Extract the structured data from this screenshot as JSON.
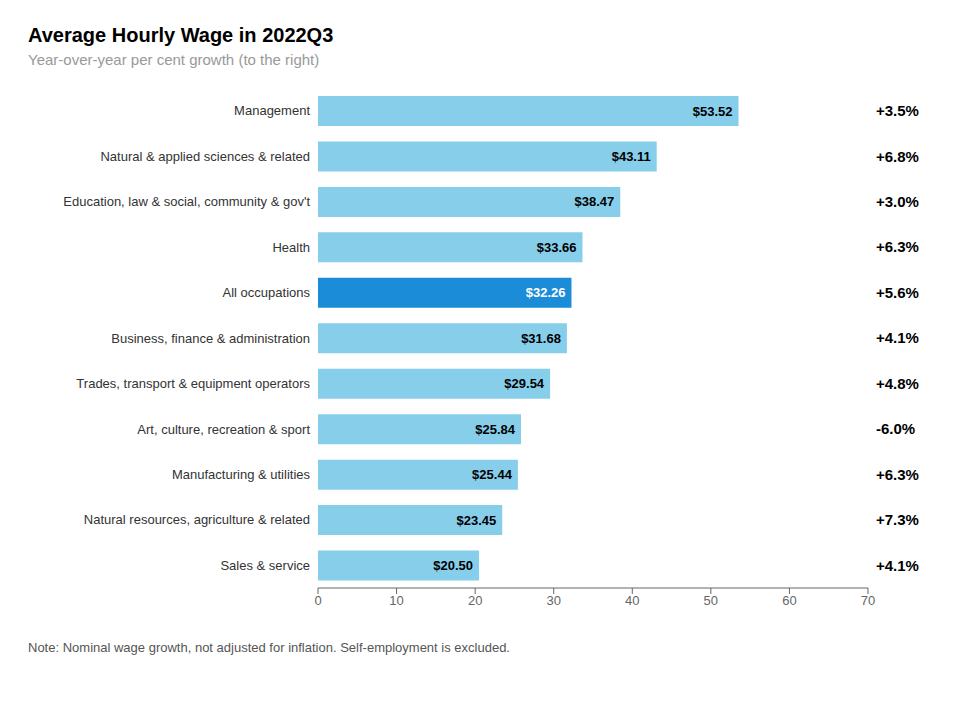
{
  "chart_data": {
    "type": "bar",
    "orientation": "horizontal",
    "title": "Average Hourly  Wage in 2022Q3",
    "subtitle": "Year-over-year per cent growth  (to the right)",
    "note": "Note:  Nominal wage growth, not adjusted for inflation.  Self-employment  is excluded.",
    "categories": [
      "Management",
      "Natural & applied sciences & related",
      "Education, law & social, community & gov't",
      "Health",
      "All occupations",
      "Business, finance & administration",
      "Trades, transport & equipment operators",
      "Art, culture, recreation & sport",
      "Manufacturing & utilities",
      "Natural resources, agriculture & related",
      "Sales & service"
    ],
    "values": [
      53.52,
      43.11,
      38.47,
      33.66,
      32.26,
      31.68,
      29.54,
      25.84,
      25.44,
      23.45,
      20.5
    ],
    "value_labels": [
      "$53.52",
      "$43.11",
      "$38.47",
      "$33.66",
      "$32.26",
      "$31.68",
      "$29.54",
      "$25.84",
      "$25.44",
      "$23.45",
      "$20.50"
    ],
    "annotations": [
      "+3.5%",
      "+6.8%",
      "+3.0%",
      "+6.3%",
      "+5.6%",
      "+4.1%",
      "+4.8%",
      "-6.0%",
      "+6.3%",
      "+7.3%",
      "+4.1%"
    ],
    "colors": [
      "#87CEEB",
      "#87CEEB",
      "#87CEEB",
      "#87CEEB",
      "#1B8DD8",
      "#87CEEB",
      "#87CEEB",
      "#87CEEB",
      "#87CEEB",
      "#87CEEB",
      "#87CEEB"
    ],
    "xlim": [
      0,
      70
    ],
    "xticks": [
      0,
      10,
      20,
      30,
      40,
      50,
      60,
      70
    ],
    "grid": false,
    "data_labels": true
  }
}
